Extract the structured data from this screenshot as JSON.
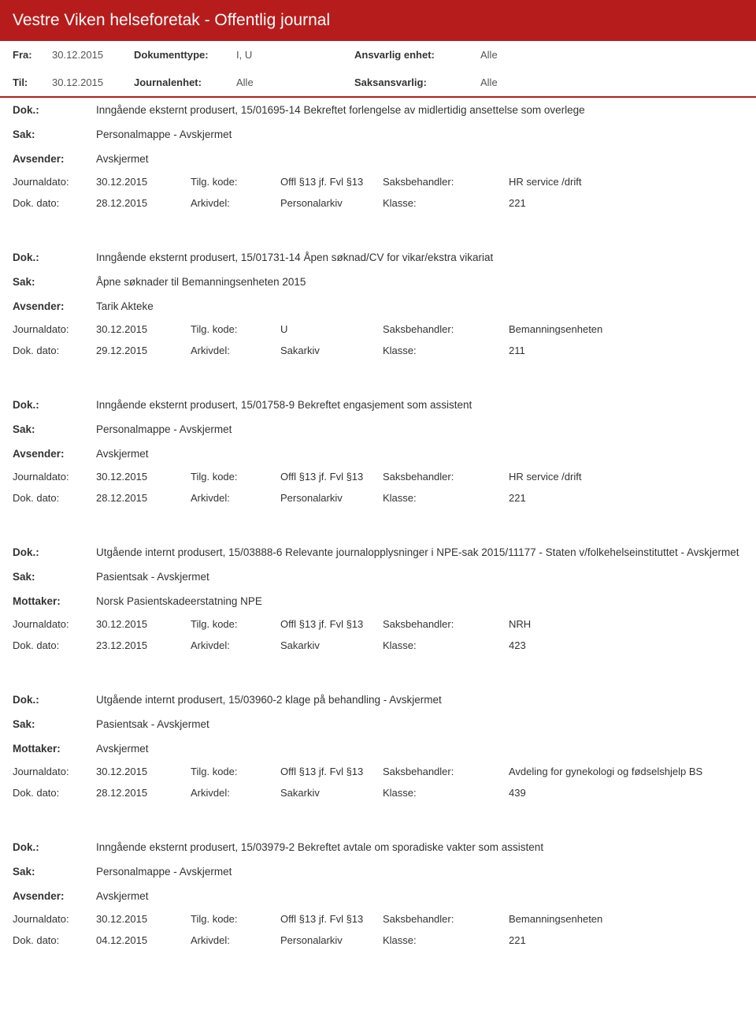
{
  "header": {
    "title": "Vestre Viken helseforetak - Offentlig journal"
  },
  "filter": {
    "fra_label": "Fra:",
    "fra_value": "30.12.2015",
    "til_label": "Til:",
    "til_value": "30.12.2015",
    "doctype_label": "Dokumenttype:",
    "doctype_value": "I, U",
    "journalenhet_label": "Journalenhet:",
    "journalenhet_value": "Alle",
    "ansvarlig_label": "Ansvarlig enhet:",
    "ansvarlig_value": "Alle",
    "saksansvarlig_label": "Saksansvarlig:",
    "saksansvarlig_value": "Alle"
  },
  "labels": {
    "dok": "Dok.:",
    "sak": "Sak:",
    "avsender": "Avsender:",
    "mottaker": "Mottaker:",
    "journaldato": "Journaldato:",
    "dokdato": "Dok. dato:",
    "tilgkode": "Tilg. kode:",
    "arkivdel": "Arkivdel:",
    "saksbehandler": "Saksbehandler:",
    "klasse": "Klasse:"
  },
  "entries": [
    {
      "dok": "Inngående eksternt produsert, 15/01695-14 Bekreftet forlengelse av midlertidig ansettelse som overlege",
      "sak": "Personalmappe - Avskjermet",
      "party_label": "Avsender:",
      "party": "Avskjermet",
      "journaldato": "30.12.2015",
      "tilgkode": "Offl §13 jf. Fvl §13",
      "saksbehandler": "HR service /drift",
      "dokdato": "28.12.2015",
      "arkivdel": "Personalarkiv",
      "klasse": "221"
    },
    {
      "dok": "Inngående eksternt produsert, 15/01731-14 Åpen søknad/CV for vikar/ekstra vikariat",
      "sak": "Åpne søknader til Bemanningsenheten 2015",
      "party_label": "Avsender:",
      "party": "Tarik Akteke",
      "journaldato": "30.12.2015",
      "tilgkode": "U",
      "saksbehandler": "Bemanningsenheten",
      "dokdato": "29.12.2015",
      "arkivdel": "Sakarkiv",
      "klasse": "211"
    },
    {
      "dok": "Inngående eksternt produsert, 15/01758-9 Bekreftet engasjement som assistent",
      "sak": "Personalmappe - Avskjermet",
      "party_label": "Avsender:",
      "party": "Avskjermet",
      "journaldato": "30.12.2015",
      "tilgkode": "Offl §13 jf. Fvl §13",
      "saksbehandler": "HR service /drift",
      "dokdato": "28.12.2015",
      "arkivdel": "Personalarkiv",
      "klasse": "221"
    },
    {
      "dok": "Utgående internt produsert, 15/03888-6 Relevante journalopplysninger i NPE-sak 2015/11177 - Staten v/folkehelseinstituttet - Avskjermet",
      "sak": "Pasientsak - Avskjermet",
      "party_label": "Mottaker:",
      "party": "Norsk Pasientskadeerstatning NPE",
      "journaldato": "30.12.2015",
      "tilgkode": "Offl §13 jf. Fvl §13",
      "saksbehandler": "NRH",
      "dokdato": "23.12.2015",
      "arkivdel": "Sakarkiv",
      "klasse": "423"
    },
    {
      "dok": "Utgående internt produsert, 15/03960-2 klage på behandling - Avskjermet",
      "sak": "Pasientsak - Avskjermet",
      "party_label": "Mottaker:",
      "party": "Avskjermet",
      "journaldato": "30.12.2015",
      "tilgkode": "Offl §13 jf. Fvl §13",
      "saksbehandler": "Avdeling for gynekologi og fødselshjelp BS",
      "dokdato": "28.12.2015",
      "arkivdel": "Sakarkiv",
      "klasse": "439"
    },
    {
      "dok": "Inngående eksternt produsert, 15/03979-2 Bekreftet avtale om sporadiske vakter som assistent",
      "sak": "Personalmappe - Avskjermet",
      "party_label": "Avsender:",
      "party": "Avskjermet",
      "journaldato": "30.12.2015",
      "tilgkode": "Offl §13 jf. Fvl §13",
      "saksbehandler": "Bemanningsenheten",
      "dokdato": "04.12.2015",
      "arkivdel": "Personalarkiv",
      "klasse": "221"
    }
  ]
}
